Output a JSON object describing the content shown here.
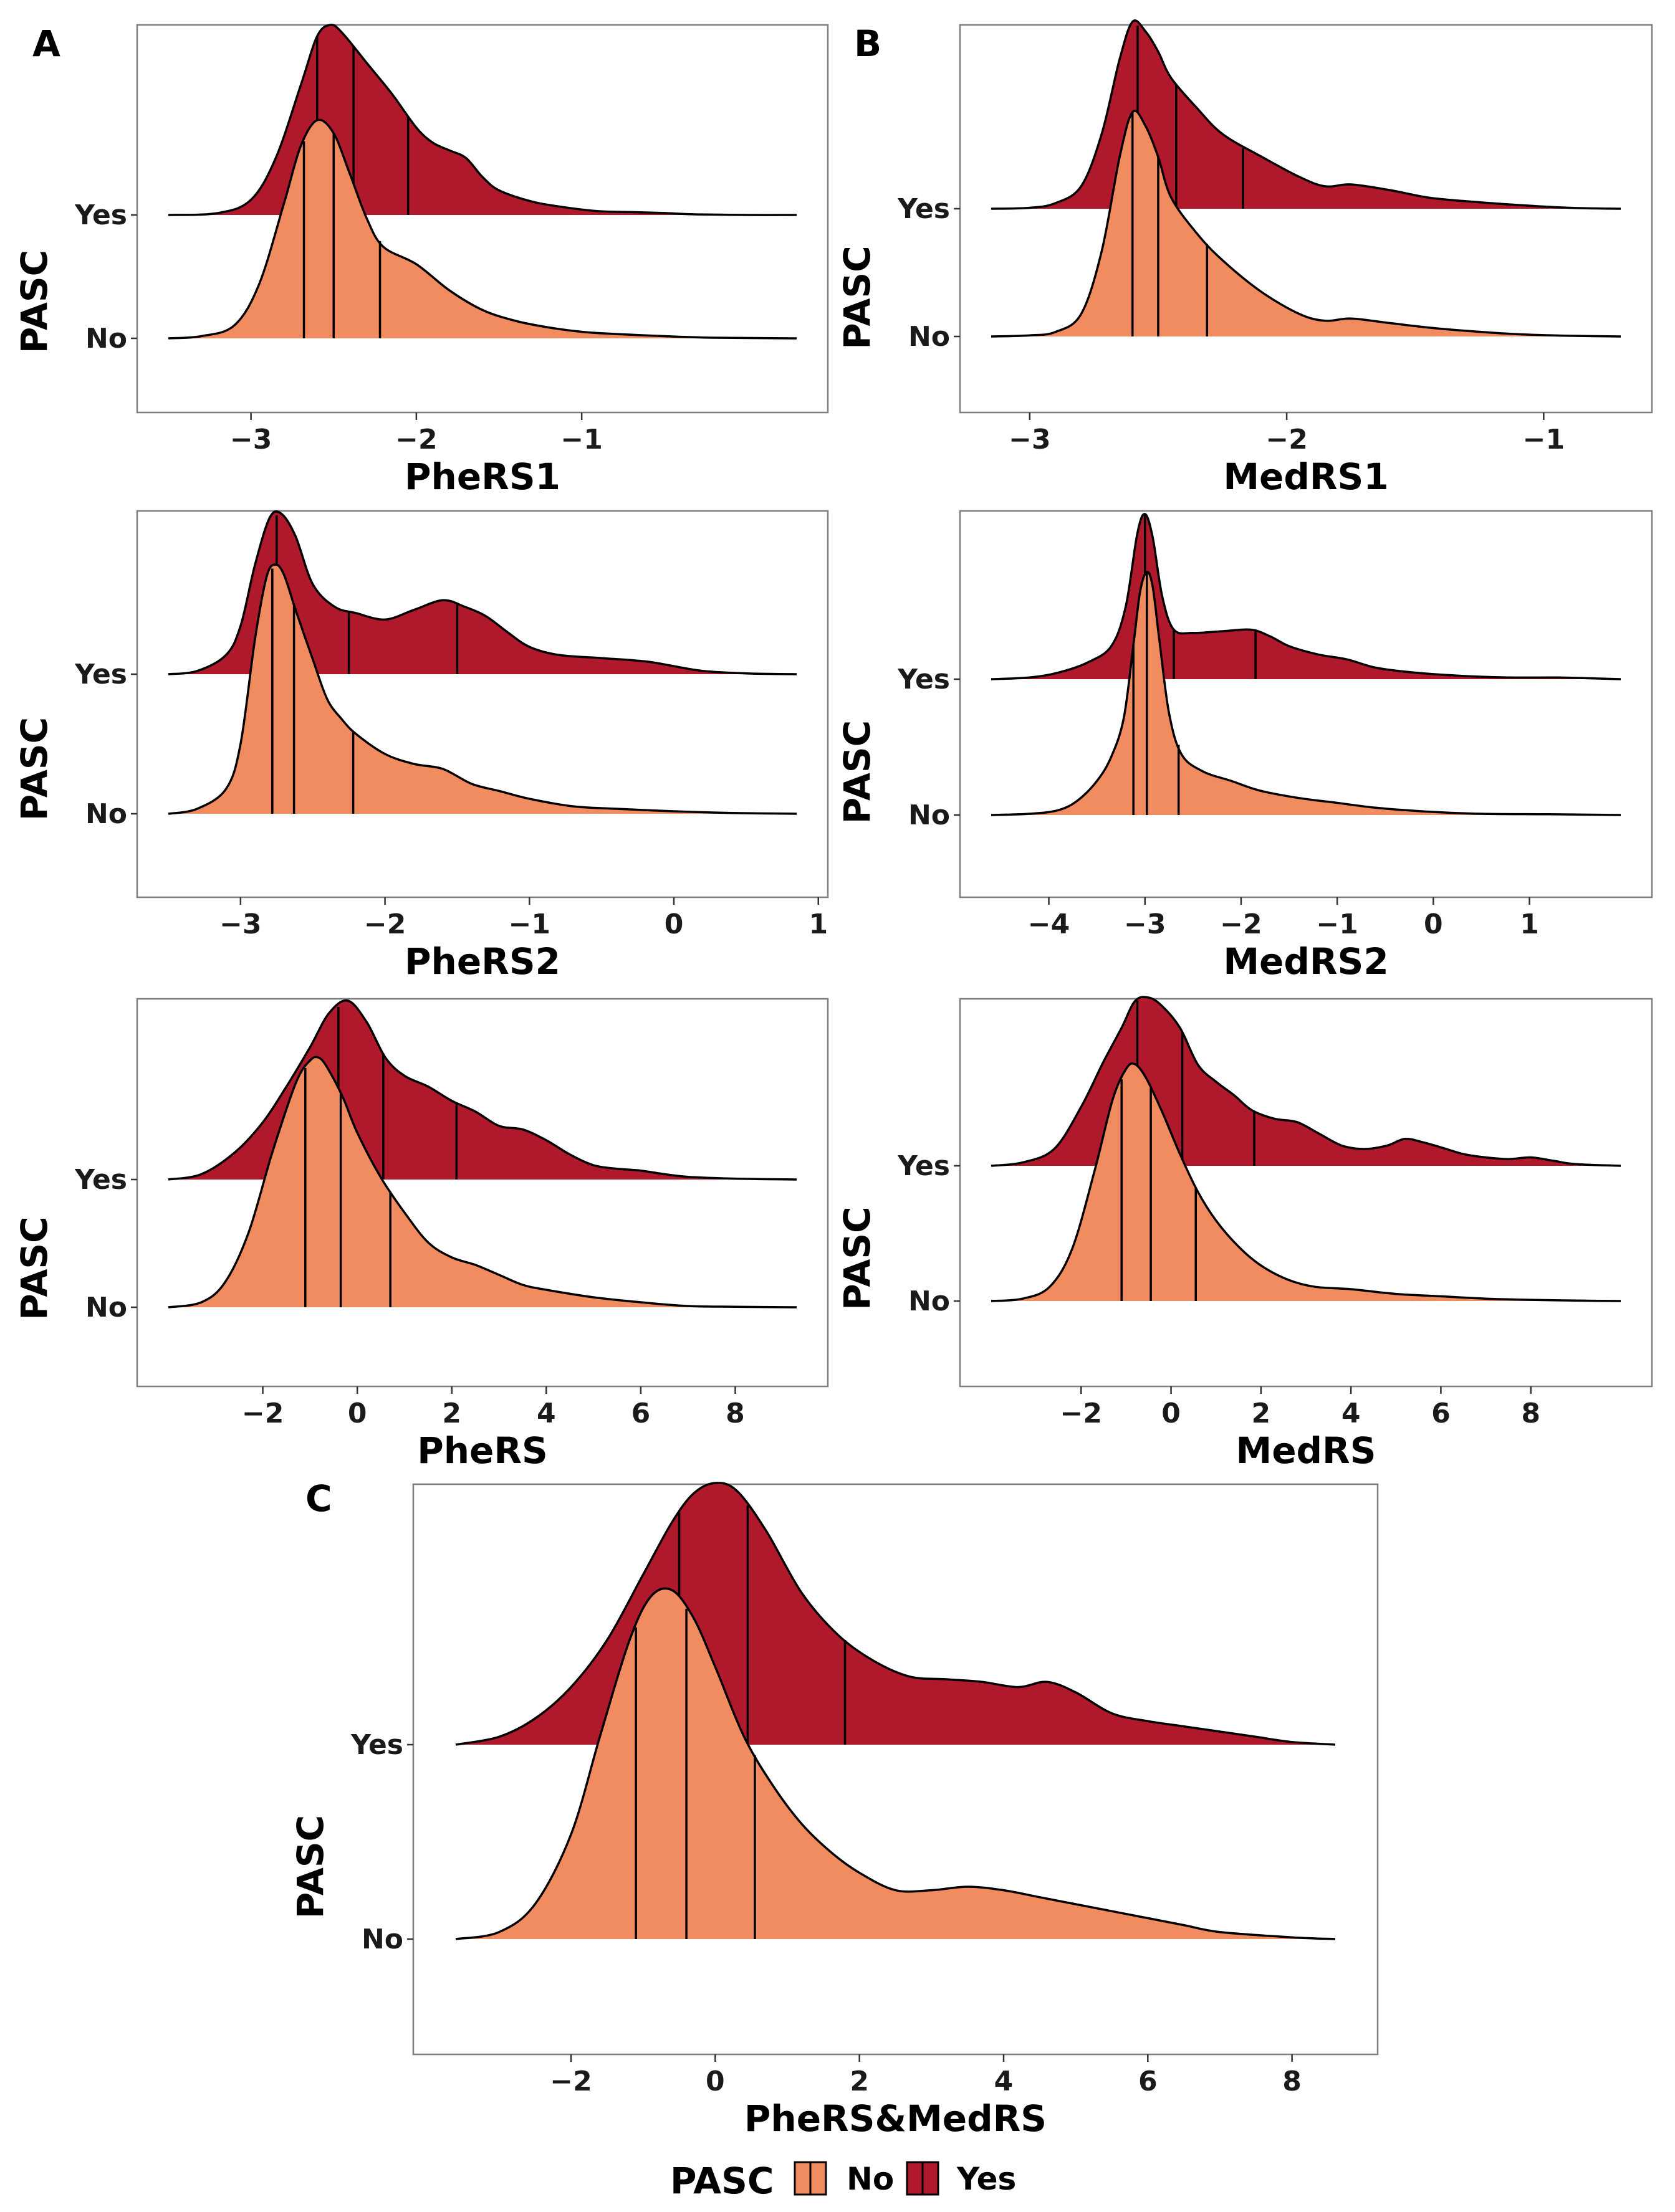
{
  "figure": {
    "panel_letters": [
      "A",
      "B",
      "C"
    ],
    "legend": {
      "title": "PASC",
      "items": [
        {
          "label": "No",
          "color": "#F08C60"
        },
        {
          "label": "Yes",
          "color": "#B0182B"
        }
      ]
    }
  },
  "chart_data": [
    {
      "type": "ridgeline",
      "panel": "A",
      "xlabel": "PheRS1",
      "ylabel": "PASC",
      "y_categories": [
        "No",
        "Yes"
      ],
      "xlim": [
        -3.5,
        0.3
      ],
      "x_ticks": [
        -3,
        -2,
        -1
      ],
      "x_tick_labels": [
        "−3",
        "−2",
        "−1"
      ],
      "series": [
        {
          "name": "Yes",
          "color": "#B0182B",
          "x": [
            -3.5,
            -3.2,
            -3.0,
            -2.85,
            -2.7,
            -2.6,
            -2.52,
            -2.45,
            -2.3,
            -2.15,
            -2.0,
            -1.9,
            -1.8,
            -1.7,
            -1.6,
            -1.5,
            -1.3,
            -1.1,
            -0.9,
            -0.7,
            -0.5,
            -0.3,
            0.0,
            0.3
          ],
          "density": [
            0,
            0.01,
            0.08,
            0.3,
            0.68,
            0.94,
            1.0,
            0.96,
            0.8,
            0.64,
            0.46,
            0.38,
            0.34,
            0.3,
            0.2,
            0.13,
            0.07,
            0.04,
            0.02,
            0.015,
            0.01,
            0.003,
            0,
            0
          ],
          "quartiles": [
            -2.6,
            -2.38,
            -2.05
          ]
        },
        {
          "name": "No",
          "color": "#F08C60",
          "x": [
            -3.5,
            -3.3,
            -3.1,
            -2.95,
            -2.8,
            -2.7,
            -2.6,
            -2.5,
            -2.4,
            -2.3,
            -2.2,
            -2.0,
            -1.8,
            -1.6,
            -1.4,
            -1.2,
            -1.0,
            -0.8,
            -0.5,
            -0.2,
            0.3
          ],
          "density": [
            0,
            0.01,
            0.06,
            0.25,
            0.62,
            0.88,
            1.0,
            0.94,
            0.75,
            0.55,
            0.42,
            0.34,
            0.22,
            0.13,
            0.08,
            0.05,
            0.03,
            0.02,
            0.01,
            0.003,
            0
          ],
          "quartiles": [
            -2.68,
            -2.5,
            -2.22
          ]
        }
      ]
    },
    {
      "type": "ridgeline",
      "panel": "B",
      "xlabel": "MedRS1",
      "ylabel": "PASC",
      "y_categories": [
        "No",
        "Yes"
      ],
      "xlim": [
        -3.15,
        -0.7
      ],
      "x_ticks": [
        -3,
        -2,
        -1
      ],
      "x_tick_labels": [
        "−3",
        "−2",
        "−1"
      ],
      "series": [
        {
          "name": "Yes",
          "color": "#B0182B",
          "x": [
            -3.15,
            -3.0,
            -2.9,
            -2.8,
            -2.72,
            -2.65,
            -2.6,
            -2.55,
            -2.5,
            -2.45,
            -2.35,
            -2.25,
            -2.1,
            -1.95,
            -1.85,
            -1.75,
            -1.6,
            -1.45,
            -1.3,
            -1.1,
            -0.9,
            -0.7
          ],
          "density": [
            0,
            0.005,
            0.03,
            0.12,
            0.4,
            0.8,
            1.0,
            0.95,
            0.84,
            0.7,
            0.54,
            0.4,
            0.28,
            0.17,
            0.12,
            0.13,
            0.1,
            0.06,
            0.04,
            0.02,
            0.005,
            0
          ],
          "quartiles": [
            -2.58,
            -2.43,
            -2.17
          ]
        },
        {
          "name": "No",
          "color": "#F08C60",
          "x": [
            -3.15,
            -3.0,
            -2.9,
            -2.8,
            -2.72,
            -2.65,
            -2.6,
            -2.55,
            -2.5,
            -2.45,
            -2.35,
            -2.25,
            -2.1,
            -1.95,
            -1.85,
            -1.75,
            -1.6,
            -1.45,
            -1.3,
            -1.1,
            -0.9,
            -0.7
          ],
          "density": [
            0,
            0.005,
            0.02,
            0.1,
            0.38,
            0.8,
            1.0,
            0.94,
            0.8,
            0.62,
            0.46,
            0.34,
            0.2,
            0.1,
            0.07,
            0.08,
            0.06,
            0.04,
            0.025,
            0.01,
            0.003,
            0
          ],
          "quartiles": [
            -2.6,
            -2.5,
            -2.31
          ]
        }
      ]
    },
    {
      "type": "ridgeline",
      "panel": "A",
      "xlabel": "PheRS2",
      "ylabel": "PASC",
      "y_categories": [
        "No",
        "Yes"
      ],
      "xlim": [
        -3.5,
        0.85
      ],
      "x_ticks": [
        -3,
        -2,
        -1,
        0,
        1
      ],
      "x_tick_labels": [
        "−3",
        "−2",
        "−1",
        "0",
        "1"
      ],
      "series": [
        {
          "name": "Yes",
          "color": "#B0182B",
          "x": [
            -3.5,
            -3.3,
            -3.1,
            -3.0,
            -2.9,
            -2.8,
            -2.72,
            -2.62,
            -2.5,
            -2.35,
            -2.2,
            -2.0,
            -1.8,
            -1.6,
            -1.45,
            -1.3,
            -1.15,
            -1.0,
            -0.8,
            -0.5,
            -0.2,
            0.0,
            0.2,
            0.5,
            0.85
          ],
          "density": [
            0,
            0.02,
            0.12,
            0.3,
            0.68,
            0.97,
            1.0,
            0.86,
            0.56,
            0.42,
            0.38,
            0.34,
            0.4,
            0.46,
            0.42,
            0.36,
            0.26,
            0.17,
            0.12,
            0.1,
            0.08,
            0.05,
            0.02,
            0.005,
            0
          ],
          "quartiles": [
            -2.75,
            -2.25,
            -1.5
          ]
        },
        {
          "name": "No",
          "color": "#F08C60",
          "x": [
            -3.5,
            -3.3,
            -3.1,
            -3.0,
            -2.9,
            -2.82,
            -2.76,
            -2.7,
            -2.62,
            -2.5,
            -2.4,
            -2.3,
            -2.2,
            -2.0,
            -1.8,
            -1.6,
            -1.4,
            -1.2,
            -1.0,
            -0.7,
            -0.4,
            0.0,
            0.4,
            0.85
          ],
          "density": [
            0,
            0.02,
            0.1,
            0.28,
            0.7,
            0.95,
            1.0,
            0.96,
            0.82,
            0.62,
            0.46,
            0.38,
            0.32,
            0.24,
            0.2,
            0.18,
            0.12,
            0.09,
            0.06,
            0.03,
            0.02,
            0.01,
            0.003,
            0
          ],
          "quartiles": [
            -2.78,
            -2.63,
            -2.22
          ]
        }
      ]
    },
    {
      "type": "ridgeline",
      "panel": "B",
      "xlabel": "MedRS2",
      "ylabel": "PASC",
      "y_categories": [
        "No",
        "Yes"
      ],
      "xlim": [
        -4.6,
        1.95
      ],
      "x_ticks": [
        -4,
        -3,
        -2,
        -1,
        0,
        1
      ],
      "x_tick_labels": [
        "−4",
        "−3",
        "−2",
        "−1",
        "0",
        "1"
      ],
      "series": [
        {
          "name": "Yes",
          "color": "#B0182B",
          "x": [
            -4.6,
            -4.2,
            -3.9,
            -3.6,
            -3.35,
            -3.2,
            -3.08,
            -3.0,
            -2.92,
            -2.82,
            -2.7,
            -2.5,
            -2.2,
            -1.9,
            -1.7,
            -1.5,
            -1.2,
            -0.9,
            -0.6,
            -0.2,
            0.3,
            0.8,
            1.3,
            1.95
          ],
          "density": [
            0,
            0.01,
            0.04,
            0.1,
            0.2,
            0.44,
            0.88,
            1.0,
            0.86,
            0.5,
            0.3,
            0.28,
            0.29,
            0.3,
            0.26,
            0.2,
            0.15,
            0.12,
            0.07,
            0.04,
            0.02,
            0.01,
            0.01,
            0
          ],
          "quartiles": [
            -3.0,
            -2.7,
            -1.85
          ]
        },
        {
          "name": "No",
          "color": "#F08C60",
          "x": [
            -4.6,
            -4.2,
            -3.9,
            -3.7,
            -3.5,
            -3.35,
            -3.22,
            -3.12,
            -3.05,
            -2.98,
            -2.92,
            -2.85,
            -2.75,
            -2.62,
            -2.4,
            -2.1,
            -1.8,
            -1.4,
            -1.0,
            -0.6,
            -0.1,
            0.5,
            1.2,
            1.95
          ],
          "density": [
            0,
            0.005,
            0.02,
            0.06,
            0.14,
            0.24,
            0.4,
            0.7,
            0.92,
            1.0,
            0.94,
            0.72,
            0.42,
            0.25,
            0.18,
            0.14,
            0.1,
            0.07,
            0.05,
            0.03,
            0.015,
            0.005,
            0.003,
            0
          ],
          "quartiles": [
            -3.12,
            -2.98,
            -2.65
          ]
        }
      ]
    },
    {
      "type": "ridgeline",
      "panel": "A",
      "xlabel": "PheRS",
      "ylabel": "PASC",
      "y_categories": [
        "No",
        "Yes"
      ],
      "xlim": [
        -4.0,
        9.3
      ],
      "x_ticks": [
        -2,
        0,
        2,
        4,
        6,
        8
      ],
      "x_tick_labels": [
        "−2",
        "0",
        "2",
        "4",
        "6",
        "8"
      ],
      "series": [
        {
          "name": "Yes",
          "color": "#B0182B",
          "x": [
            -4.0,
            -3.3,
            -2.6,
            -2.0,
            -1.5,
            -1.0,
            -0.6,
            -0.2,
            0.2,
            0.6,
            1.0,
            1.5,
            2.0,
            2.5,
            3.0,
            3.5,
            4.0,
            4.5,
            5.0,
            5.5,
            6.0,
            6.5,
            7.0,
            8.0,
            9.3
          ],
          "density": [
            0,
            0.03,
            0.15,
            0.32,
            0.52,
            0.74,
            0.93,
            1.0,
            0.88,
            0.68,
            0.58,
            0.52,
            0.44,
            0.38,
            0.3,
            0.28,
            0.22,
            0.14,
            0.08,
            0.06,
            0.05,
            0.03,
            0.015,
            0.005,
            0
          ],
          "quartiles": [
            -0.4,
            0.55,
            2.1
          ]
        },
        {
          "name": "No",
          "color": "#F08C60",
          "x": [
            -4.0,
            -3.3,
            -2.8,
            -2.3,
            -1.8,
            -1.3,
            -1.0,
            -0.8,
            -0.6,
            -0.3,
            0.0,
            0.5,
            1.0,
            1.5,
            2.0,
            2.5,
            3.0,
            3.5,
            4.0,
            5.0,
            6.0,
            7.0,
            8.0,
            9.3
          ],
          "density": [
            0,
            0.02,
            0.1,
            0.3,
            0.62,
            0.9,
            0.99,
            1.0,
            0.95,
            0.84,
            0.7,
            0.52,
            0.38,
            0.26,
            0.2,
            0.17,
            0.13,
            0.09,
            0.07,
            0.04,
            0.02,
            0.005,
            0.002,
            0
          ],
          "quartiles": [
            -1.1,
            -0.35,
            0.7
          ]
        }
      ]
    },
    {
      "type": "ridgeline",
      "panel": "B",
      "xlabel": "MedRS",
      "ylabel": "PASC",
      "y_categories": [
        "No",
        "Yes"
      ],
      "xlim": [
        -4.0,
        10.0
      ],
      "x_ticks": [
        -2,
        0,
        2,
        4,
        6,
        8
      ],
      "x_tick_labels": [
        "−2",
        "0",
        "2",
        "4",
        "6",
        "8"
      ],
      "series": [
        {
          "name": "Yes",
          "color": "#B0182B",
          "x": [
            -4.0,
            -3.3,
            -2.6,
            -2.0,
            -1.5,
            -1.1,
            -0.8,
            -0.5,
            -0.2,
            0.2,
            0.6,
            1.0,
            1.4,
            1.8,
            2.3,
            2.8,
            3.3,
            3.8,
            4.3,
            4.8,
            5.2,
            5.6,
            6.0,
            6.5,
            7.0,
            7.5,
            8.0,
            8.5,
            9.0,
            10.0
          ],
          "density": [
            0,
            0.02,
            0.1,
            0.35,
            0.62,
            0.82,
            0.98,
            1.0,
            0.95,
            0.82,
            0.6,
            0.5,
            0.42,
            0.33,
            0.28,
            0.26,
            0.19,
            0.12,
            0.1,
            0.12,
            0.16,
            0.14,
            0.11,
            0.07,
            0.05,
            0.04,
            0.05,
            0.03,
            0.01,
            0
          ],
          "quartiles": [
            -0.75,
            0.25,
            1.85
          ]
        },
        {
          "name": "No",
          "color": "#F08C60",
          "x": [
            -4.0,
            -3.3,
            -2.7,
            -2.2,
            -1.7,
            -1.3,
            -1.0,
            -0.8,
            -0.55,
            -0.2,
            0.2,
            0.6,
            1.0,
            1.5,
            2.0,
            2.6,
            3.2,
            4.0,
            5.0,
            6.0,
            7.0,
            8.0,
            9.0,
            10.0
          ],
          "density": [
            0,
            0.01,
            0.06,
            0.22,
            0.55,
            0.85,
            0.98,
            1.0,
            0.94,
            0.8,
            0.62,
            0.46,
            0.34,
            0.23,
            0.15,
            0.09,
            0.06,
            0.05,
            0.03,
            0.02,
            0.01,
            0.005,
            0.002,
            0
          ],
          "quartiles": [
            -1.1,
            -0.45,
            0.55
          ]
        }
      ]
    },
    {
      "type": "ridgeline",
      "panel": "C",
      "xlabel": "PheRS&MedRS",
      "ylabel": "PASC",
      "y_categories": [
        "No",
        "Yes"
      ],
      "xlim": [
        -3.6,
        8.6
      ],
      "x_ticks": [
        -2,
        0,
        2,
        4,
        6,
        8
      ],
      "x_tick_labels": [
        "−2",
        "0",
        "2",
        "4",
        "6",
        "8"
      ],
      "series": [
        {
          "name": "Yes",
          "color": "#B0182B",
          "x": [
            -3.6,
            -3.0,
            -2.5,
            -2.0,
            -1.5,
            -1.0,
            -0.6,
            -0.3,
            0.0,
            0.3,
            0.7,
            1.2,
            1.7,
            2.2,
            2.7,
            3.2,
            3.7,
            4.2,
            4.6,
            5.0,
            5.5,
            6.0,
            6.5,
            7.0,
            7.5,
            8.0,
            8.6
          ],
          "density": [
            0,
            0.03,
            0.1,
            0.22,
            0.4,
            0.65,
            0.85,
            0.96,
            1.0,
            0.97,
            0.82,
            0.58,
            0.42,
            0.32,
            0.26,
            0.25,
            0.24,
            0.22,
            0.24,
            0.2,
            0.12,
            0.09,
            0.07,
            0.05,
            0.03,
            0.01,
            0
          ],
          "quartiles": [
            -0.5,
            0.45,
            1.8
          ]
        },
        {
          "name": "No",
          "color": "#F08C60",
          "x": [
            -3.6,
            -3.0,
            -2.5,
            -2.0,
            -1.6,
            -1.2,
            -0.9,
            -0.6,
            -0.3,
            0.0,
            0.4,
            0.8,
            1.2,
            1.6,
            2.0,
            2.5,
            3.0,
            3.5,
            4.0,
            4.5,
            5.0,
            5.5,
            6.0,
            6.5,
            7.0,
            8.0,
            8.6
          ],
          "density": [
            0,
            0.02,
            0.1,
            0.3,
            0.58,
            0.85,
            0.98,
            1.0,
            0.92,
            0.78,
            0.58,
            0.44,
            0.33,
            0.25,
            0.19,
            0.14,
            0.14,
            0.15,
            0.14,
            0.12,
            0.1,
            0.08,
            0.06,
            0.04,
            0.02,
            0.005,
            0
          ],
          "quartiles": [
            -1.1,
            -0.4,
            0.55
          ]
        }
      ]
    }
  ]
}
